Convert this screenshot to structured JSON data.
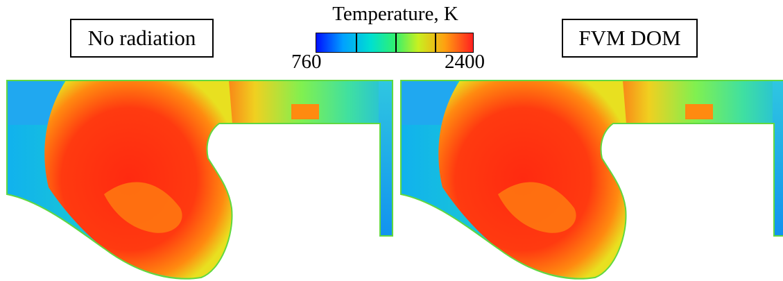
{
  "panels": [
    {
      "label": "No radiation"
    },
    {
      "label": "FVM DOM"
    }
  ],
  "colorbar": {
    "title": "Temperature, K",
    "min_label": "760",
    "max_label": "2400",
    "min": 760,
    "max": 2400,
    "colors": [
      "#0010ff",
      "#00a0ff",
      "#00e0d0",
      "#30f070",
      "#c8f020",
      "#ffa010",
      "#ff2020"
    ]
  }
}
